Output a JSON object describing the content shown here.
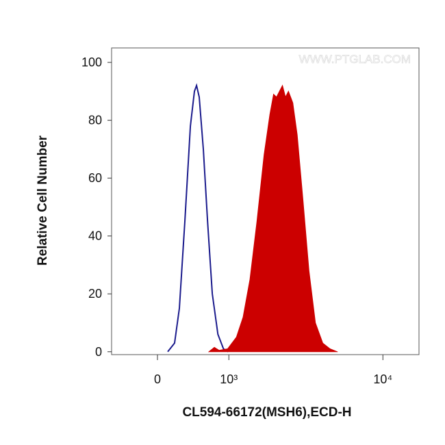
{
  "chart_data": {
    "type": "line",
    "xlabel": "CL594-66172(MSH6),ECD-H",
    "ylabel": "Relative Cell Number",
    "watermark": "WWW.PTGLAB.COM",
    "xscale": "biexponential",
    "xlim": [
      -585,
      16600
    ],
    "xticks": [
      0,
      {
        "value": 1000,
        "label": "10³"
      },
      {
        "value": 10000,
        "label": "10⁴"
      }
    ],
    "ylim": [
      -1,
      105
    ],
    "yticks": [
      0,
      20,
      40,
      60,
      80,
      100
    ],
    "series": [
      {
        "color": "#1a1a8c",
        "fill": false,
        "x": [
          123,
          206,
          265,
          334,
          406,
          460,
          489,
          526,
          585,
          647,
          720,
          810,
          903,
          989
        ],
        "values": [
          0,
          3,
          15,
          45,
          78,
          90,
          92,
          88,
          70,
          45,
          20,
          6,
          1,
          0
        ]
      },
      {
        "color": "#cc0000",
        "fill": true,
        "x": [
          667,
          752,
          829,
          977,
          1145,
          1283,
          1438,
          1609,
          1799,
          1966,
          2081,
          2175,
          2274,
          2377,
          2485,
          2596,
          2771,
          2954,
          3218,
          3502,
          3842,
          4267,
          4735,
          5253
        ],
        "values": [
          0,
          1.5,
          0.5,
          1,
          5,
          12,
          25,
          45,
          68,
          82,
          89,
          88,
          90,
          92,
          88,
          90,
          86,
          75,
          52,
          28,
          10,
          3,
          1,
          0
        ]
      }
    ]
  }
}
